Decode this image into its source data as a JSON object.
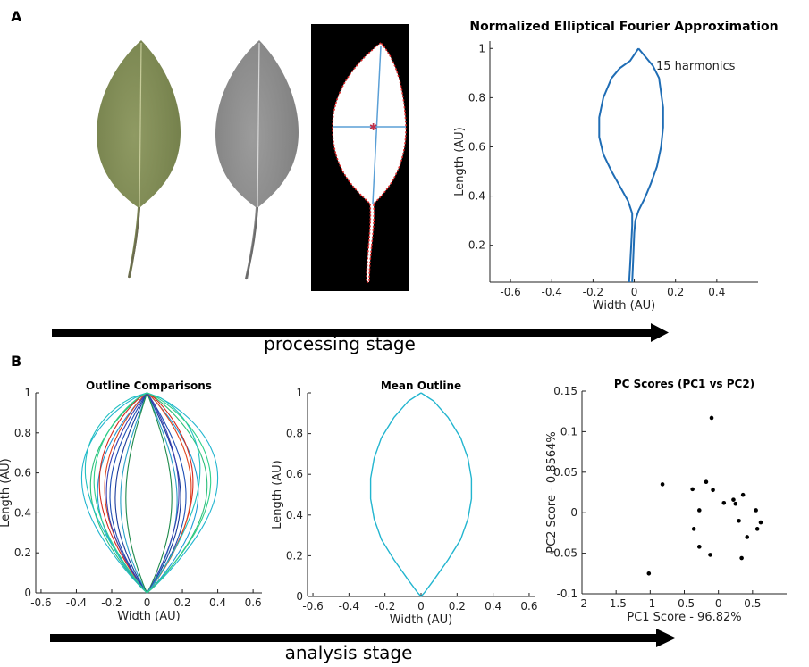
{
  "panel_a_label": "A",
  "panel_b_label": "B",
  "arrows": {
    "processing": "processing stage",
    "analysis": "analysis stage"
  },
  "colors": {
    "leaf_green": "#7d8a55",
    "leaf_gray": "#8a8a8a",
    "outline_blue": "#1f6db5",
    "mean_cyan": "#22b5cf"
  },
  "chart_data": [
    {
      "id": "efa",
      "type": "line",
      "title": "Normalized Elliptical Fourier Approximation",
      "annotation": "15 harmonics",
      "xlabel": "Width (AU)",
      "ylabel": "Length (AU)",
      "xlim": [
        -0.7,
        0.6
      ],
      "ylim": [
        0.05,
        1.03
      ],
      "xticks": [
        -0.6,
        -0.4,
        -0.2,
        0,
        0.2,
        0.4
      ],
      "xtick_labels": [
        "-0.6",
        "-0.4",
        "-0.2",
        "0",
        "0.2",
        "0.4"
      ],
      "yticks": [
        0.2,
        0.4,
        0.6,
        0.8,
        1
      ],
      "ytick_labels": [
        "0.2",
        "0.4",
        "0.6",
        "0.8",
        "1"
      ],
      "outline": {
        "right": [
          [
            0.02,
            1.0
          ],
          [
            0.05,
            0.97
          ],
          [
            0.09,
            0.93
          ],
          [
            0.12,
            0.88
          ],
          [
            0.13,
            0.82
          ],
          [
            0.14,
            0.76
          ],
          [
            0.14,
            0.68
          ],
          [
            0.13,
            0.6
          ],
          [
            0.11,
            0.52
          ],
          [
            0.08,
            0.45
          ],
          [
            0.05,
            0.39
          ],
          [
            0.02,
            0.34
          ],
          [
            0.005,
            0.3
          ],
          [
            0.0,
            0.25
          ],
          [
            -0.005,
            0.15
          ],
          [
            -0.01,
            0.05
          ]
        ],
        "left": [
          [
            0.02,
            1.0
          ],
          [
            -0.02,
            0.95
          ],
          [
            -0.07,
            0.92
          ],
          [
            -0.11,
            0.88
          ],
          [
            -0.15,
            0.8
          ],
          [
            -0.17,
            0.72
          ],
          [
            -0.17,
            0.64
          ],
          [
            -0.15,
            0.57
          ],
          [
            -0.11,
            0.5
          ],
          [
            -0.07,
            0.44
          ],
          [
            -0.03,
            0.38
          ],
          [
            -0.01,
            0.33
          ],
          [
            -0.01,
            0.28
          ],
          [
            -0.015,
            0.2
          ],
          [
            -0.02,
            0.12
          ],
          [
            -0.025,
            0.05
          ]
        ]
      }
    },
    {
      "id": "comparisons",
      "type": "line",
      "title": "Outline Comparisons",
      "xlabel": "Width (AU)",
      "ylabel": "Length (AU)",
      "xlim": [
        -0.63,
        0.65
      ],
      "ylim": [
        0,
        1
      ],
      "xticks": [
        -0.6,
        -0.4,
        -0.2,
        0,
        0.2,
        0.4,
        0.6
      ],
      "xtick_labels": [
        "-0.6",
        "-0.4",
        "-0.2",
        "0",
        "0.2",
        "0.4",
        "0.6"
      ],
      "yticks": [
        0,
        0.2,
        0.4,
        0.6,
        0.8,
        1
      ],
      "ytick_labels": [
        "0",
        "0.2",
        "0.4",
        "0.6",
        "0.8",
        "1"
      ],
      "outlines": [
        {
          "color": "#22b5cf",
          "w_left": 0.37,
          "w_right": 0.4,
          "peak": 0.45
        },
        {
          "color": "#2dbf7a",
          "w_left": 0.32,
          "w_right": 0.34,
          "peak": 0.5
        },
        {
          "color": "#1f9bd6",
          "w_left": 0.28,
          "w_right": 0.29,
          "peak": 0.55
        },
        {
          "color": "#d62a1f",
          "w_left": 0.27,
          "w_right": 0.26,
          "peak": 0.48
        },
        {
          "color": "#e0451d",
          "w_left": 0.24,
          "w_right": 0.25,
          "peak": 0.52
        },
        {
          "color": "#1f4fb5",
          "w_left": 0.21,
          "w_right": 0.22,
          "peak": 0.58
        },
        {
          "color": "#1a3a9a",
          "w_left": 0.18,
          "w_right": 0.19,
          "peak": 0.6
        },
        {
          "color": "#2aa0c8",
          "w_left": 0.15,
          "w_right": 0.17,
          "peak": 0.62
        },
        {
          "color": "#1e8a4a",
          "w_left": 0.12,
          "w_right": 0.14,
          "peak": 0.6
        },
        {
          "color": "#3a3fb0",
          "w_left": 0.23,
          "w_right": 0.18,
          "peak": 0.55
        },
        {
          "color": "#1fc0c0",
          "w_left": 0.35,
          "w_right": 0.3,
          "peak": 0.4
        },
        {
          "color": "#2fd08a",
          "w_left": 0.3,
          "w_right": 0.36,
          "peak": 0.47
        }
      ]
    },
    {
      "id": "mean",
      "type": "line",
      "title": "Mean Outline",
      "xlabel": "Width (AU)",
      "ylabel": "Length (AU)",
      "xlim": [
        -0.63,
        0.63
      ],
      "ylim": [
        0,
        1
      ],
      "xticks": [
        -0.6,
        -0.4,
        -0.2,
        0,
        0.2,
        0.4,
        0.6
      ],
      "xtick_labels": [
        "-0.6",
        "-0.4",
        "-0.2",
        "0",
        "0.2",
        "0.4",
        "0.6"
      ],
      "yticks": [
        0,
        0.2,
        0.4,
        0.6,
        0.8,
        1
      ],
      "ytick_labels": [
        "0",
        "0.2",
        "0.4",
        "0.6",
        "0.8",
        "1"
      ],
      "outline": [
        [
          0,
          1.0
        ],
        [
          0.07,
          0.96
        ],
        [
          0.15,
          0.88
        ],
        [
          0.22,
          0.78
        ],
        [
          0.26,
          0.68
        ],
        [
          0.28,
          0.58
        ],
        [
          0.28,
          0.48
        ],
        [
          0.26,
          0.38
        ],
        [
          0.22,
          0.28
        ],
        [
          0.15,
          0.18
        ],
        [
          0.07,
          0.08
        ],
        [
          0.02,
          0.02
        ],
        [
          0,
          0
        ]
      ]
    },
    {
      "id": "pc",
      "type": "scatter",
      "title": "PC Scores (PC1 vs PC2)",
      "xlabel": "PC1 Score - 96.82%",
      "ylabel": "PC2 Score - 0.8564%",
      "xlim": [
        -2,
        1
      ],
      "ylim": [
        -0.1,
        0.15
      ],
      "xticks": [
        -2,
        -1.5,
        -1,
        -0.5,
        0,
        0.5
      ],
      "xtick_labels": [
        "-2",
        "-1.5",
        "-1",
        "-0.5",
        "0",
        "0.5"
      ],
      "yticks": [
        -0.1,
        -0.05,
        0,
        0.05,
        0.1,
        0.15
      ],
      "ytick_labels": [
        "-0.1",
        "-0.05",
        "0",
        "0.05",
        "0.1",
        "0.15"
      ],
      "points": [
        [
          -1.02,
          -0.075
        ],
        [
          -0.82,
          0.035
        ],
        [
          -0.38,
          0.029
        ],
        [
          -0.36,
          -0.02
        ],
        [
          -0.28,
          0.003
        ],
        [
          -0.28,
          -0.042
        ],
        [
          -0.18,
          0.038
        ],
        [
          -0.12,
          -0.052
        ],
        [
          -0.1,
          0.117
        ],
        [
          -0.08,
          0.028
        ],
        [
          0.08,
          0.012
        ],
        [
          0.22,
          0.016
        ],
        [
          0.25,
          0.011
        ],
        [
          0.3,
          -0.01
        ],
        [
          0.34,
          -0.056
        ],
        [
          0.36,
          0.022
        ],
        [
          0.42,
          -0.03
        ],
        [
          0.55,
          0.003
        ],
        [
          0.57,
          -0.02
        ],
        [
          0.62,
          -0.012
        ]
      ]
    }
  ]
}
